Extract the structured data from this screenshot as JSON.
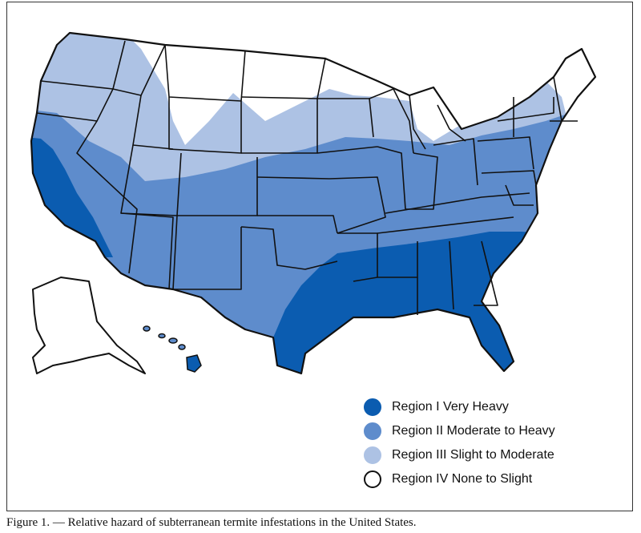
{
  "colors": {
    "region_1": "#0b5cb0",
    "region_2": "#5e8ccc",
    "region_3": "#adc2e4",
    "region_4": "#ffffff",
    "border": "#111111"
  },
  "legend": {
    "items": [
      {
        "label": "Region I Very Heavy",
        "color_key": "region_1"
      },
      {
        "label": "Region II Moderate to Heavy",
        "color_key": "region_2"
      },
      {
        "label": "Region III Slight to Moderate",
        "color_key": "region_3"
      },
      {
        "label": "Region IV None to Slight",
        "color_key": "region_4"
      }
    ]
  },
  "caption": "Figure 1. — Relative hazard of subterranean termite infestations in the United States."
}
